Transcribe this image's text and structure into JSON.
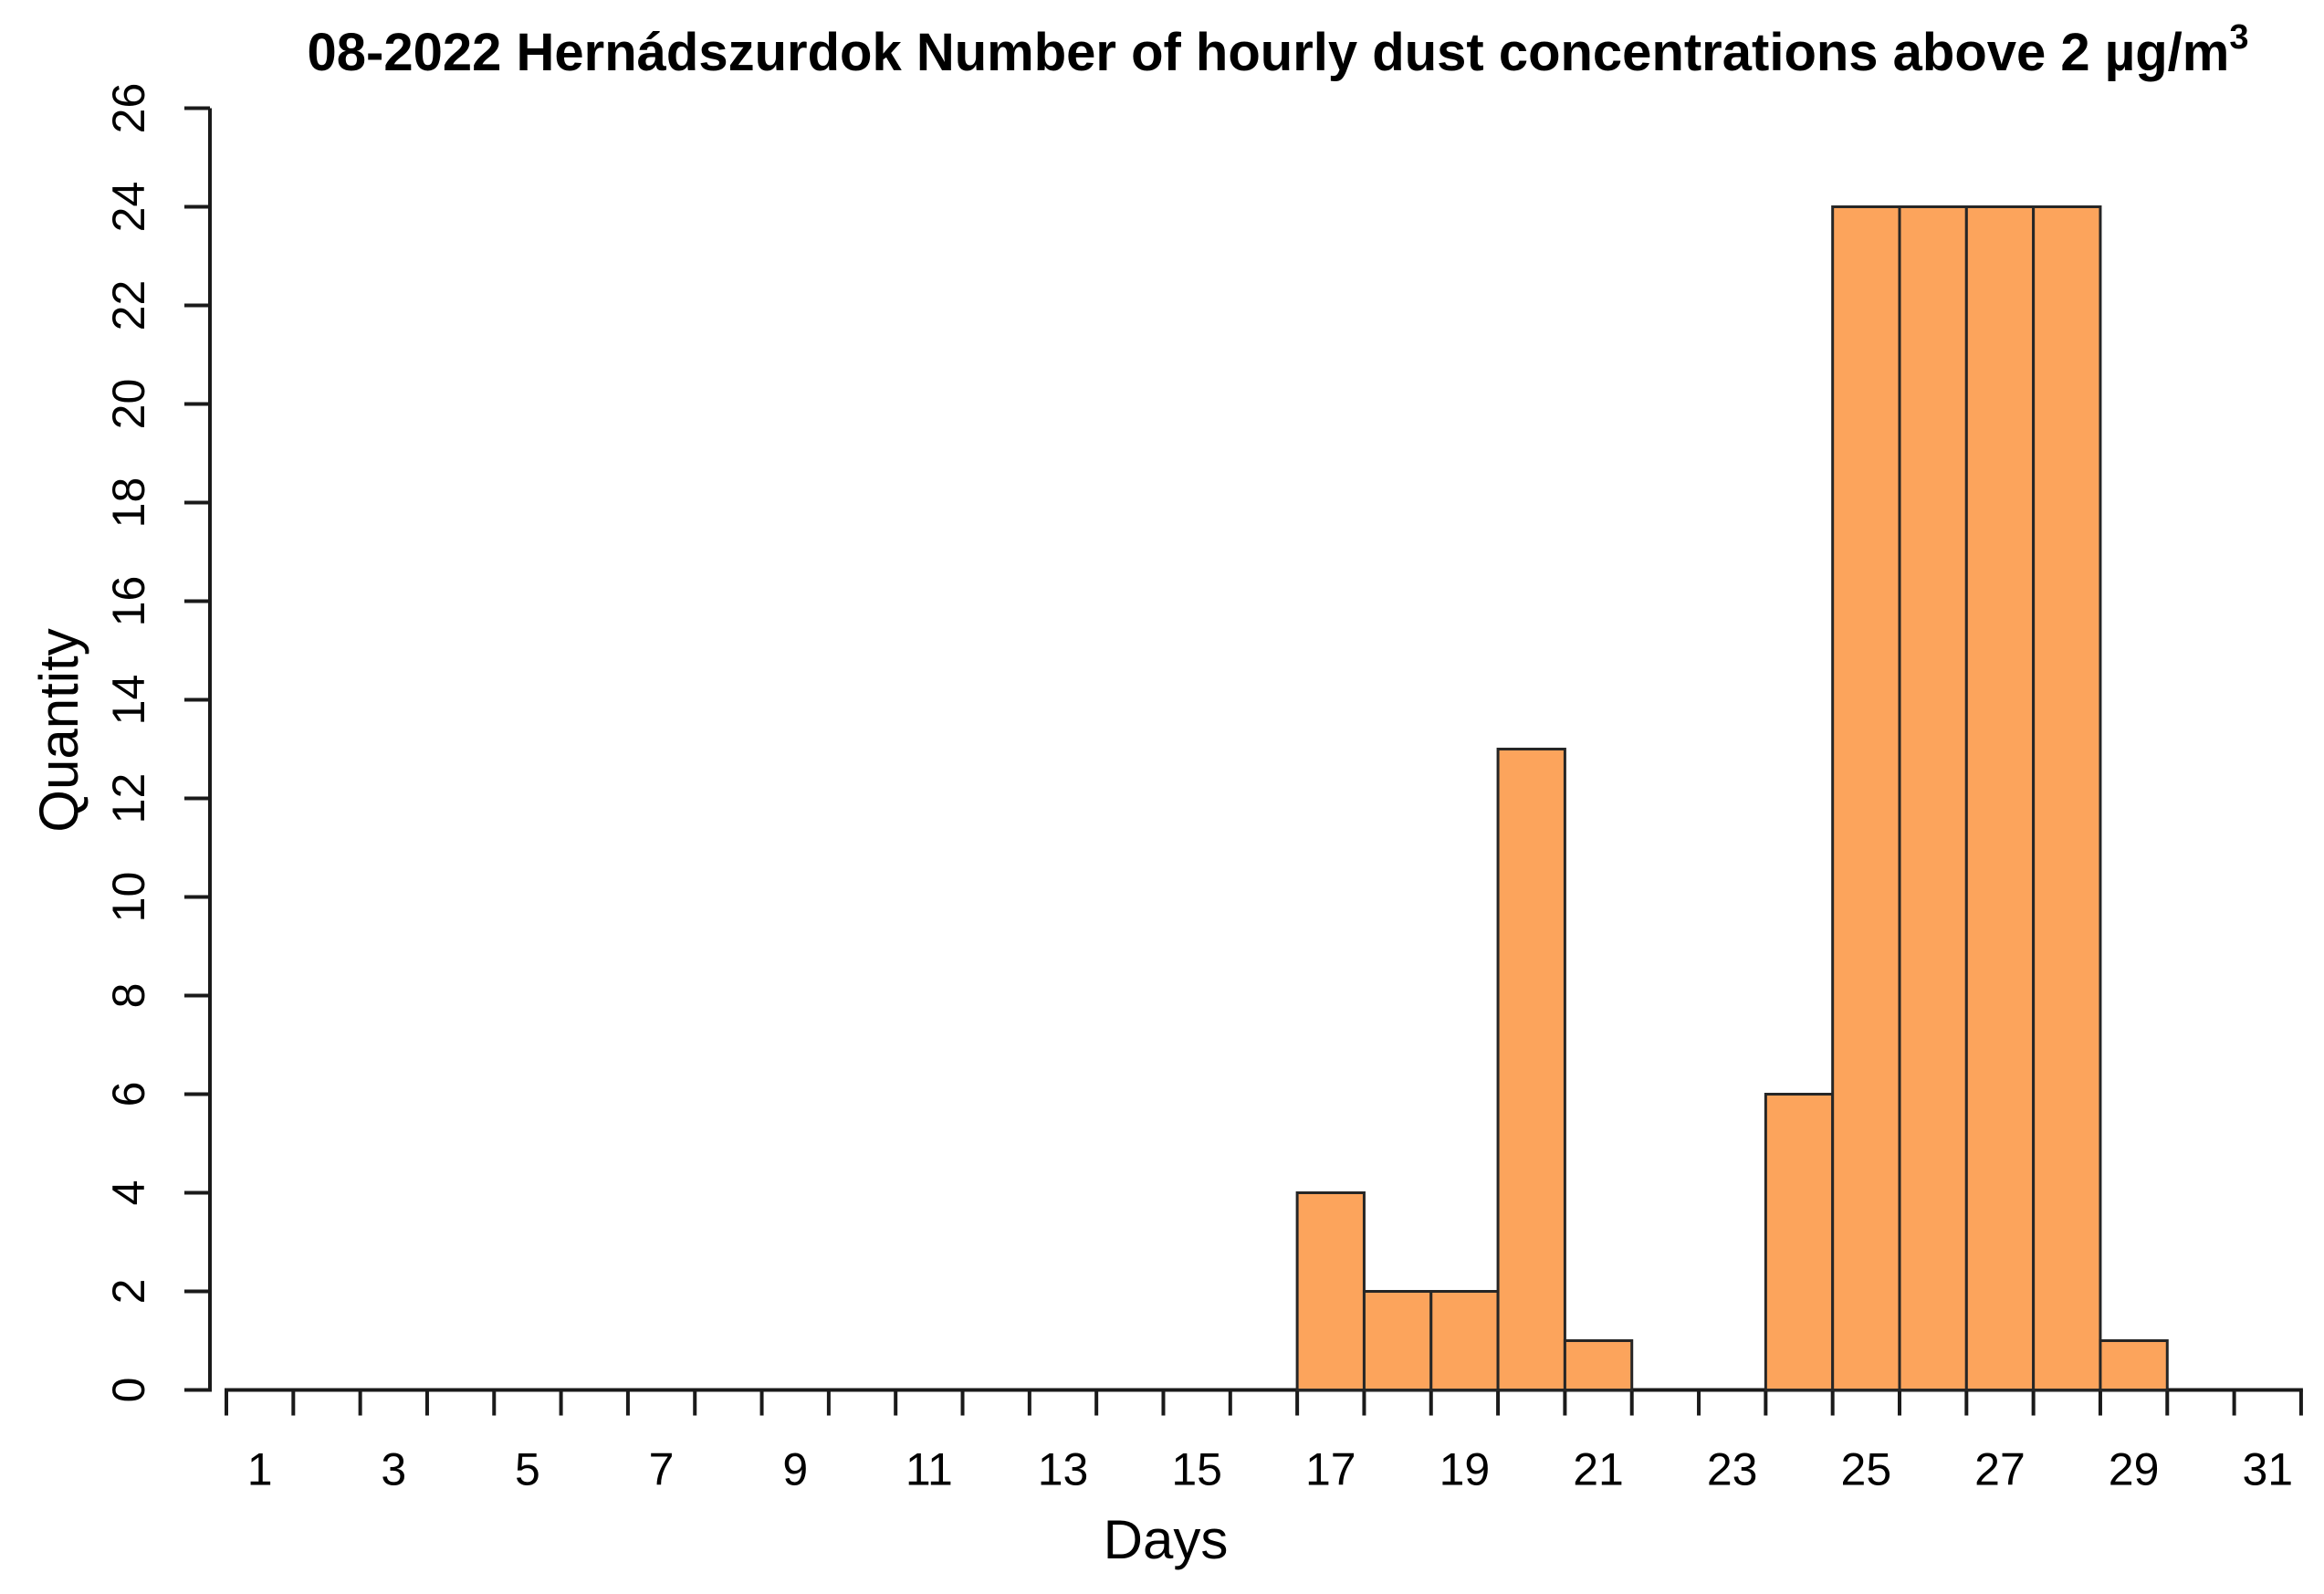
{
  "title": {
    "main": "08-2022  Hernádszurdok Number of hourly dust concentrations above 2 µg/m",
    "superscript": "3"
  },
  "chart_data": {
    "type": "bar",
    "title": "08-2022  Hernádszurdok Number of hourly dust concentrations above 2 µg/m³",
    "xlabel": "Days",
    "ylabel": "Quantity",
    "categories": [
      1,
      2,
      3,
      4,
      5,
      6,
      7,
      8,
      9,
      10,
      11,
      12,
      13,
      14,
      15,
      16,
      17,
      18,
      19,
      20,
      21,
      22,
      23,
      24,
      25,
      26,
      27,
      28,
      29,
      30,
      31
    ],
    "values": [
      0,
      0,
      0,
      0,
      0,
      0,
      0,
      0,
      0,
      0,
      0,
      0,
      0,
      0,
      0,
      0,
      4,
      2,
      2,
      13,
      1,
      0,
      0,
      6,
      24,
      24,
      24,
      24,
      1,
      0,
      0
    ],
    "x_axis": {
      "range": [
        0.5,
        31.5
      ],
      "tick_step_days": 1,
      "labeled_days": [
        1,
        3,
        5,
        7,
        9,
        11,
        13,
        15,
        17,
        19,
        21,
        23,
        25,
        27,
        29,
        31
      ]
    },
    "y_axis": {
      "range": [
        0,
        26
      ],
      "ticks": [
        0,
        2,
        4,
        6,
        8,
        10,
        12,
        14,
        16,
        18,
        20,
        22,
        24,
        26
      ]
    },
    "grid": false,
    "legend": null,
    "colors": {
      "bar_fill": "#FCA45C",
      "bar_border": "#262626",
      "axis": "#1A1A1A",
      "text": "#000000"
    }
  }
}
